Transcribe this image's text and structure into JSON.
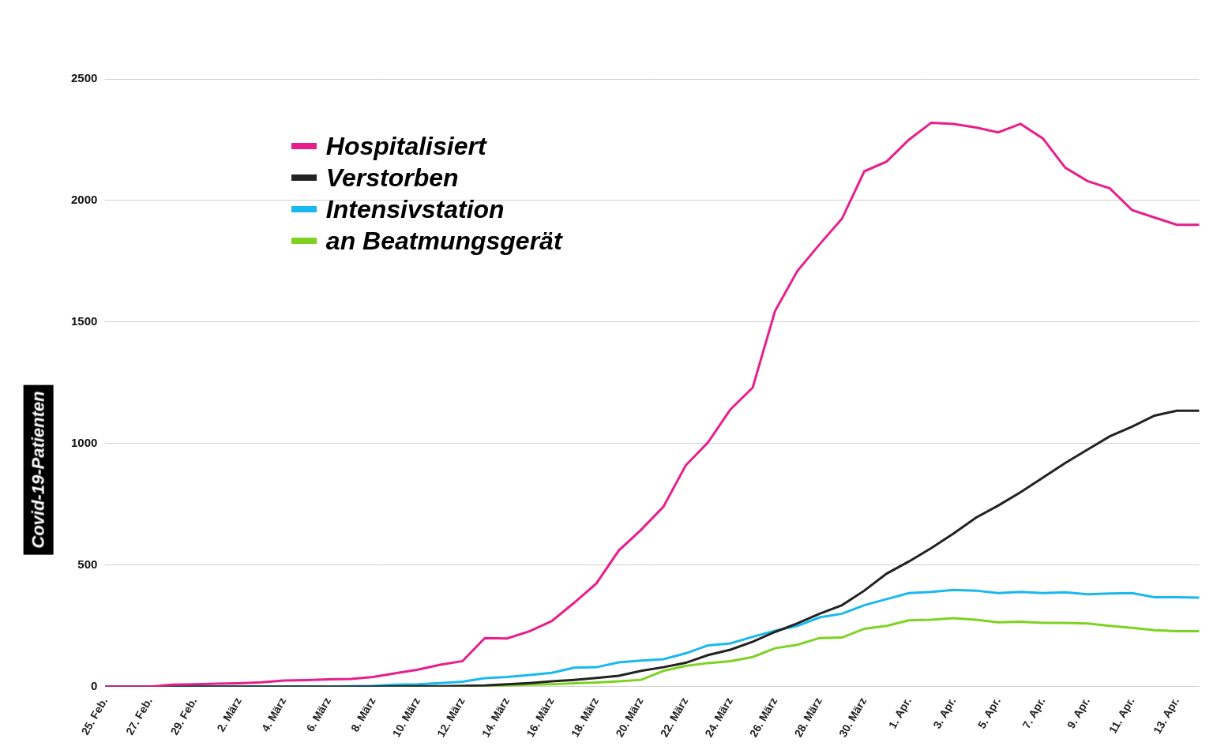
{
  "chart_data": {
    "type": "line",
    "ylabel": "Covid-19-Patienten",
    "categories": [
      "25. Feb.",
      null,
      "27. Feb.",
      null,
      "29. Feb.",
      null,
      "2. März",
      null,
      "4. März",
      null,
      "6. März",
      null,
      "8. März",
      null,
      "10. März",
      null,
      "12. März",
      null,
      "14. März",
      null,
      "16. März",
      null,
      "18. März",
      null,
      "20. März",
      null,
      "22. März",
      null,
      "24. März",
      null,
      "26. März",
      null,
      "28. März",
      null,
      "30. März",
      null,
      "1. Apr.",
      null,
      "3. Apr.",
      null,
      "5. Apr.",
      null,
      "7. Apr.",
      null,
      "9. Apr.",
      null,
      "11. Apr.",
      null,
      "13. Apr.",
      null
    ],
    "series": [
      {
        "name": "Hospitalisiert",
        "color": "#e91e8c",
        "values": [
          0,
          0,
          0,
          8,
          10,
          12,
          14,
          18,
          25,
          27,
          30,
          32,
          40,
          55,
          70,
          90,
          105,
          200,
          198,
          228,
          270,
          345,
          425,
          560,
          645,
          740,
          910,
          1005,
          1140,
          1230,
          1545,
          1710,
          1820,
          1925,
          2120,
          2160,
          2250,
          2320,
          2315,
          2300,
          2280,
          2315,
          2255,
          2135,
          2080,
          2050,
          1960,
          1930,
          1900,
          1900
        ]
      },
      {
        "name": "Verstorben",
        "color": "#222222",
        "values": [
          0,
          0,
          0,
          0,
          0,
          0,
          0,
          0,
          0,
          0,
          0,
          0,
          0,
          1,
          2,
          2,
          3,
          5,
          10,
          15,
          22,
          28,
          36,
          45,
          65,
          80,
          98,
          130,
          152,
          185,
          225,
          260,
          300,
          335,
          395,
          465,
          515,
          570,
          630,
          695,
          745,
          800,
          860,
          920,
          975,
          1030,
          1070,
          1115,
          1135,
          1135
        ]
      },
      {
        "name": "Intensivstation",
        "color": "#19b8ef",
        "values": [
          0,
          0,
          0,
          0,
          0,
          0,
          0,
          0,
          0,
          0,
          0,
          2,
          3,
          8,
          10,
          15,
          20,
          35,
          40,
          48,
          57,
          78,
          80,
          100,
          107,
          113,
          137,
          170,
          178,
          205,
          230,
          250,
          285,
          300,
          335,
          360,
          385,
          390,
          398,
          395,
          385,
          390,
          385,
          388,
          380,
          383,
          385,
          368,
          368,
          366
        ]
      },
      {
        "name": "an Beatmungsgerät",
        "color": "#7ed321",
        "values": [
          0,
          0,
          0,
          0,
          0,
          0,
          0,
          0,
          0,
          0,
          0,
          0,
          0,
          0,
          0,
          0,
          0,
          2,
          5,
          8,
          10,
          14,
          17,
          22,
          28,
          65,
          85,
          97,
          105,
          122,
          158,
          172,
          200,
          202,
          238,
          250,
          273,
          275,
          282,
          275,
          265,
          267,
          262,
          262,
          260,
          250,
          242,
          232,
          228,
          228
        ]
      }
    ],
    "ylim": [
      0,
      2500
    ],
    "yticks": [
      0,
      500,
      1000,
      1500,
      2000,
      2500
    ],
    "grid": true,
    "legend": "upper left"
  }
}
